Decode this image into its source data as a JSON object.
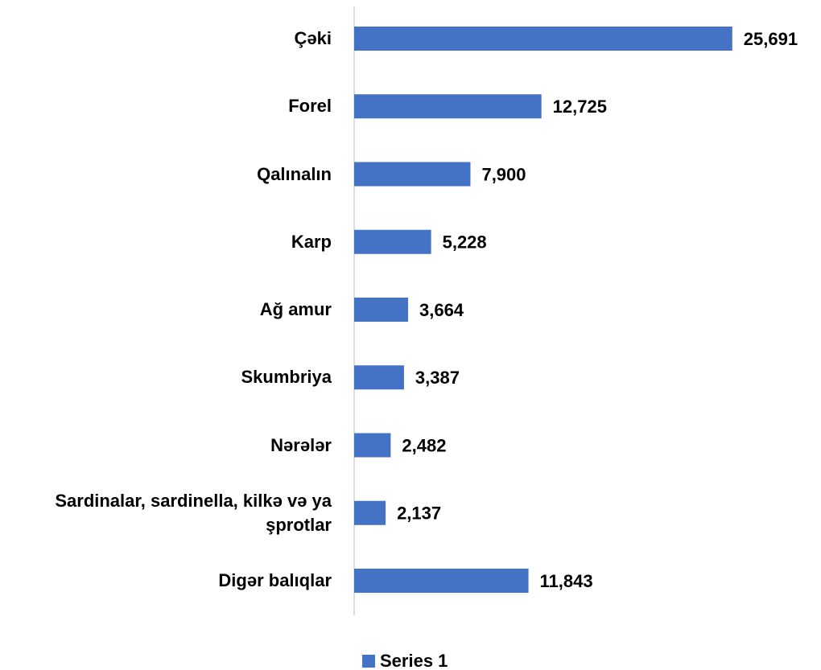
{
  "chart_data": {
    "type": "barh",
    "categories": [
      "Çəki",
      "Forel",
      "Qalınalın",
      "Karp",
      "Ağ amur",
      "Skumbriya",
      "Nərələr",
      "Sardinalar, sardinella, kilkə və ya şprotlar",
      "Digər balıqlar"
    ],
    "series": [
      {
        "name": "Series 1",
        "color": "#4472c4",
        "values": [
          25691,
          12725,
          7900,
          5228,
          3664,
          3387,
          2482,
          2137,
          11843
        ],
        "value_labels": [
          "25,691",
          "12,725",
          "7,900",
          "5,228",
          "3,664",
          "3,387",
          "2,482",
          "2,137",
          "11,843"
        ]
      }
    ],
    "xlim": [
      0,
      28000
    ],
    "legend": "bottom"
  }
}
